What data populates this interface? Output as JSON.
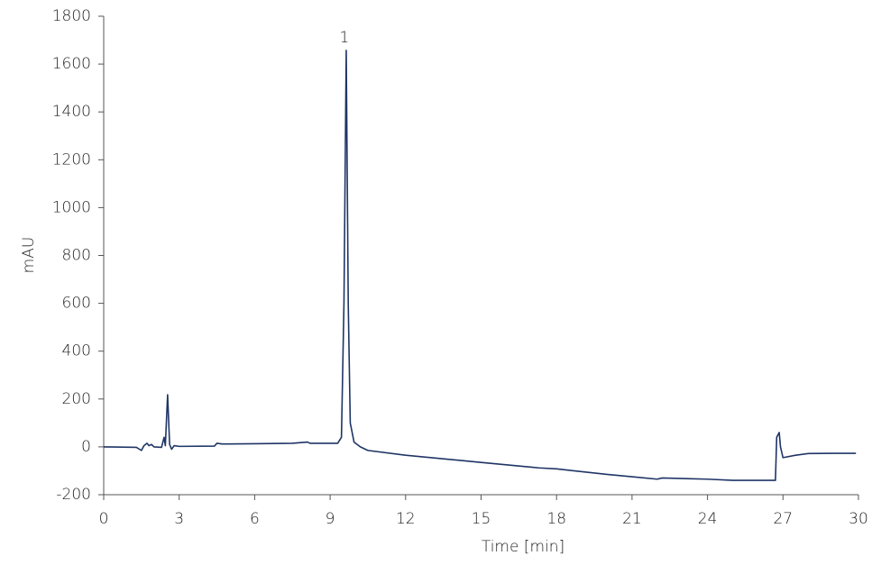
{
  "chart_data": {
    "type": "line",
    "xlabel": "Time [min]",
    "ylabel": "mAU",
    "x": [
      0,
      1.3,
      1.5,
      1.6,
      1.72,
      1.8,
      1.9,
      2.0,
      2.3,
      2.4,
      2.45,
      2.54,
      2.62,
      2.7,
      2.8,
      3,
      4.4,
      4.5,
      4.7,
      6,
      7.5,
      8.1,
      8.2,
      9.3,
      9.45,
      9.55,
      9.64,
      9.72,
      9.8,
      9.95,
      10.2,
      10.5,
      12,
      13.5,
      15,
      17,
      17.3,
      18,
      20,
      21,
      22,
      22.2,
      24,
      25,
      26.7,
      26.75,
      26.85,
      26.9,
      27,
      27.5,
      28,
      29,
      29.9
    ],
    "values": [
      0,
      -2,
      -15,
      5,
      15,
      5,
      10,
      0,
      -2,
      40,
      5,
      218,
      10,
      -10,
      5,
      2,
      3,
      15,
      12,
      13,
      15,
      20,
      15,
      15,
      40,
      600,
      1657,
      600,
      100,
      20,
      0,
      -15,
      -35,
      -50,
      -65,
      -85,
      -88,
      -92,
      -115,
      -125,
      -135,
      -130,
      -135,
      -140,
      -140,
      40,
      60,
      0,
      -45,
      -35,
      -28,
      -27,
      -27
    ],
    "color": "#1f3566",
    "annotations": [
      {
        "label": "1",
        "x": 9.64,
        "y": 1657
      }
    ],
    "xlim": [
      0,
      30
    ],
    "xticks": [
      0,
      3,
      6,
      9,
      12,
      15,
      18,
      21,
      24,
      27,
      30
    ],
    "ylim": [
      -200,
      1800
    ],
    "yticks": [
      -200,
      0,
      200,
      400,
      600,
      800,
      1000,
      1200,
      1400,
      1600,
      1800
    ],
    "grid": false
  }
}
